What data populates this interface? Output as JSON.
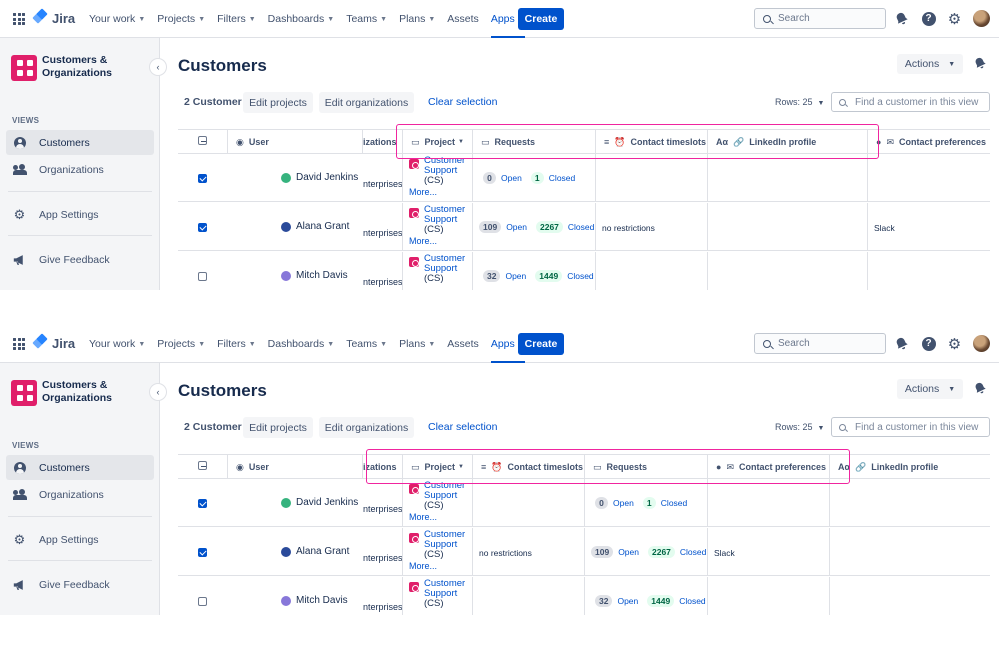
{
  "nav": {
    "app_name": "Jira",
    "items": [
      {
        "label": "Your work",
        "has_chevron": true,
        "active": false
      },
      {
        "label": "Projects",
        "has_chevron": true,
        "active": false
      },
      {
        "label": "Filters",
        "has_chevron": true,
        "active": false
      },
      {
        "label": "Dashboards",
        "has_chevron": true,
        "active": false
      },
      {
        "label": "Teams",
        "has_chevron": true,
        "active": false
      },
      {
        "label": "Plans",
        "has_chevron": true,
        "active": false
      },
      {
        "label": "Assets",
        "has_chevron": false,
        "active": false
      },
      {
        "label": "Apps",
        "has_chevron": true,
        "active": true
      }
    ],
    "create_label": "Create",
    "search_placeholder": "Search",
    "icons": [
      "app-switcher-icon",
      "notifications-icon",
      "help-icon",
      "settings-icon",
      "profile-avatar"
    ]
  },
  "sidebar": {
    "project_name_line1": "Customers &",
    "project_name_line2": "Organizations",
    "views_label": "VIEWS",
    "items": [
      {
        "label": "Customers",
        "icon": "person-icon",
        "selected": true
      },
      {
        "label": "Organizations",
        "icon": "people-icon",
        "selected": false
      },
      {
        "label": "App Settings",
        "icon": "gear-icon",
        "selected": false
      },
      {
        "label": "Give Feedback",
        "icon": "megaphone-icon",
        "selected": false
      }
    ]
  },
  "main": {
    "title": "Customers",
    "actions_label": "Actions",
    "selected_count": "2 Customer",
    "edit_projects": "Edit projects",
    "edit_organizations": "Edit organizations",
    "clear_selection": "Clear selection",
    "rows_label": "Rows: 25",
    "find_placeholder": "Find a customer in this view"
  },
  "table": {
    "col_user": "User",
    "col_org": "izations",
    "col_project": "Project",
    "col_requests": "Requests",
    "col_timeslots": "Contact timeslots",
    "col_linkedin": "LinkedIn profile",
    "col_preferences": "Contact preferences",
    "open_label": "Open",
    "closed_label": "Closed",
    "project_link_line1": "Customer",
    "project_link_line2": "Support",
    "project_key": "(CS)",
    "more_label": "More...",
    "rows": [
      {
        "checked": true,
        "user": "David Jenkins",
        "avatar_color": "#36b37e",
        "org": "nterprises",
        "open": "0",
        "closed": "1",
        "timeslots": "",
        "linkedin": "",
        "preferences": "",
        "show_more": true
      },
      {
        "checked": true,
        "user": "Alana Grant",
        "avatar_color": "#2a4a9a",
        "org": "nterprises",
        "open": "109",
        "closed": "2267",
        "timeslots": "no restrictions",
        "linkedin": "",
        "preferences": "Slack",
        "show_more": true
      },
      {
        "checked": false,
        "user": "Mitch Davis",
        "avatar_color": "#8777d9",
        "org": "nterprises",
        "open": "32",
        "closed": "1449",
        "timeslots": "",
        "linkedin": "",
        "preferences": "",
        "show_more": false
      }
    ]
  },
  "colors": {
    "brand": "#0052cc",
    "project_accent": "#e01f6a",
    "highlight": "#f0259f"
  }
}
